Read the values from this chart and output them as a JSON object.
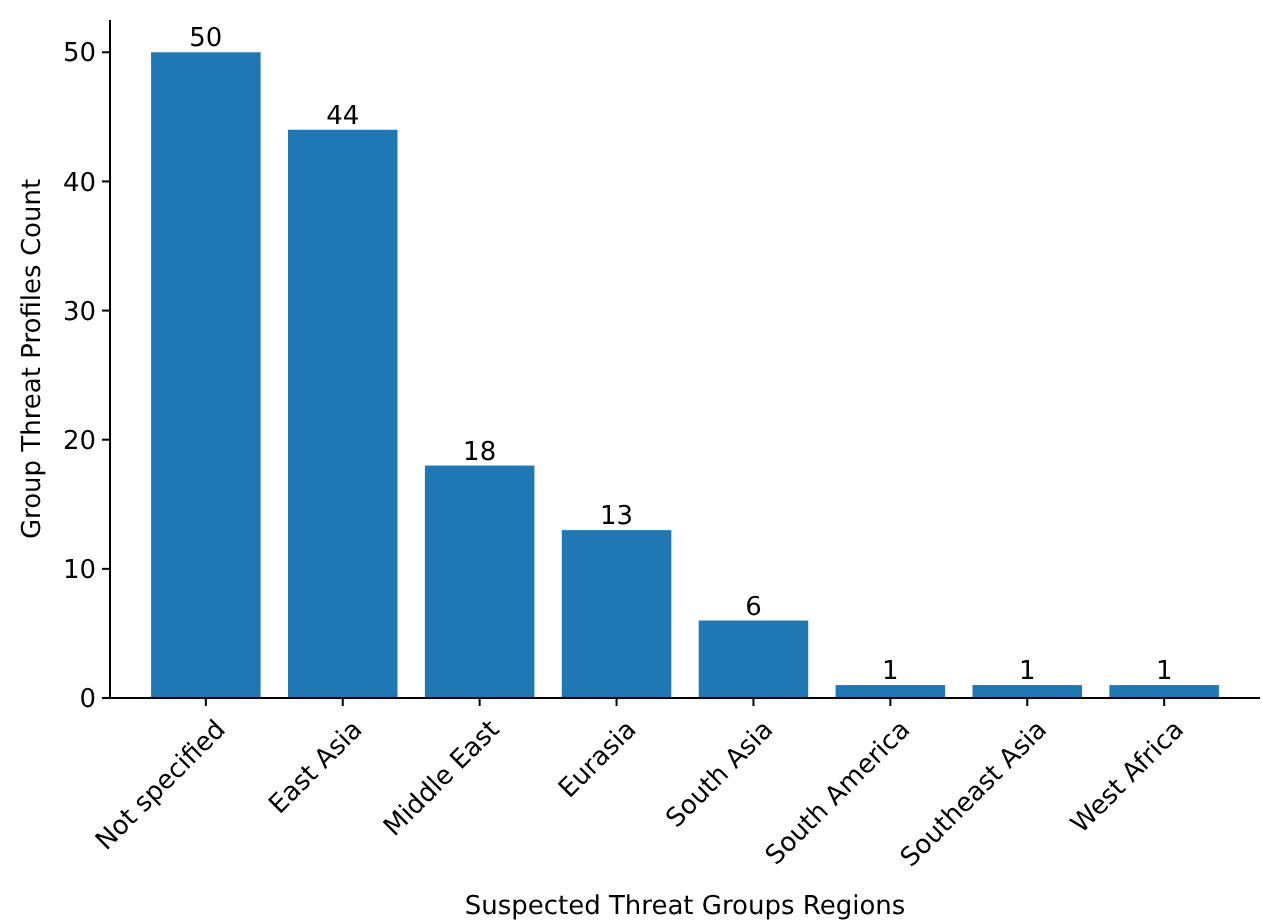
{
  "chart_data": {
    "type": "bar",
    "xlabel": "Suspected Threat Groups Regions",
    "ylabel": "Group Threat Profiles Count",
    "categories": [
      "Not specified",
      "East Asia",
      "Middle East",
      "Eurasia",
      "South Asia",
      "South America",
      "Southeast Asia",
      "West Africa"
    ],
    "values": [
      50,
      44,
      18,
      13,
      6,
      1,
      1,
      1
    ],
    "color": "#1f77b4",
    "ylim": [
      0,
      52.5
    ],
    "yticks": [
      0,
      10,
      20,
      30,
      40,
      50
    ],
    "data_labels": true
  }
}
